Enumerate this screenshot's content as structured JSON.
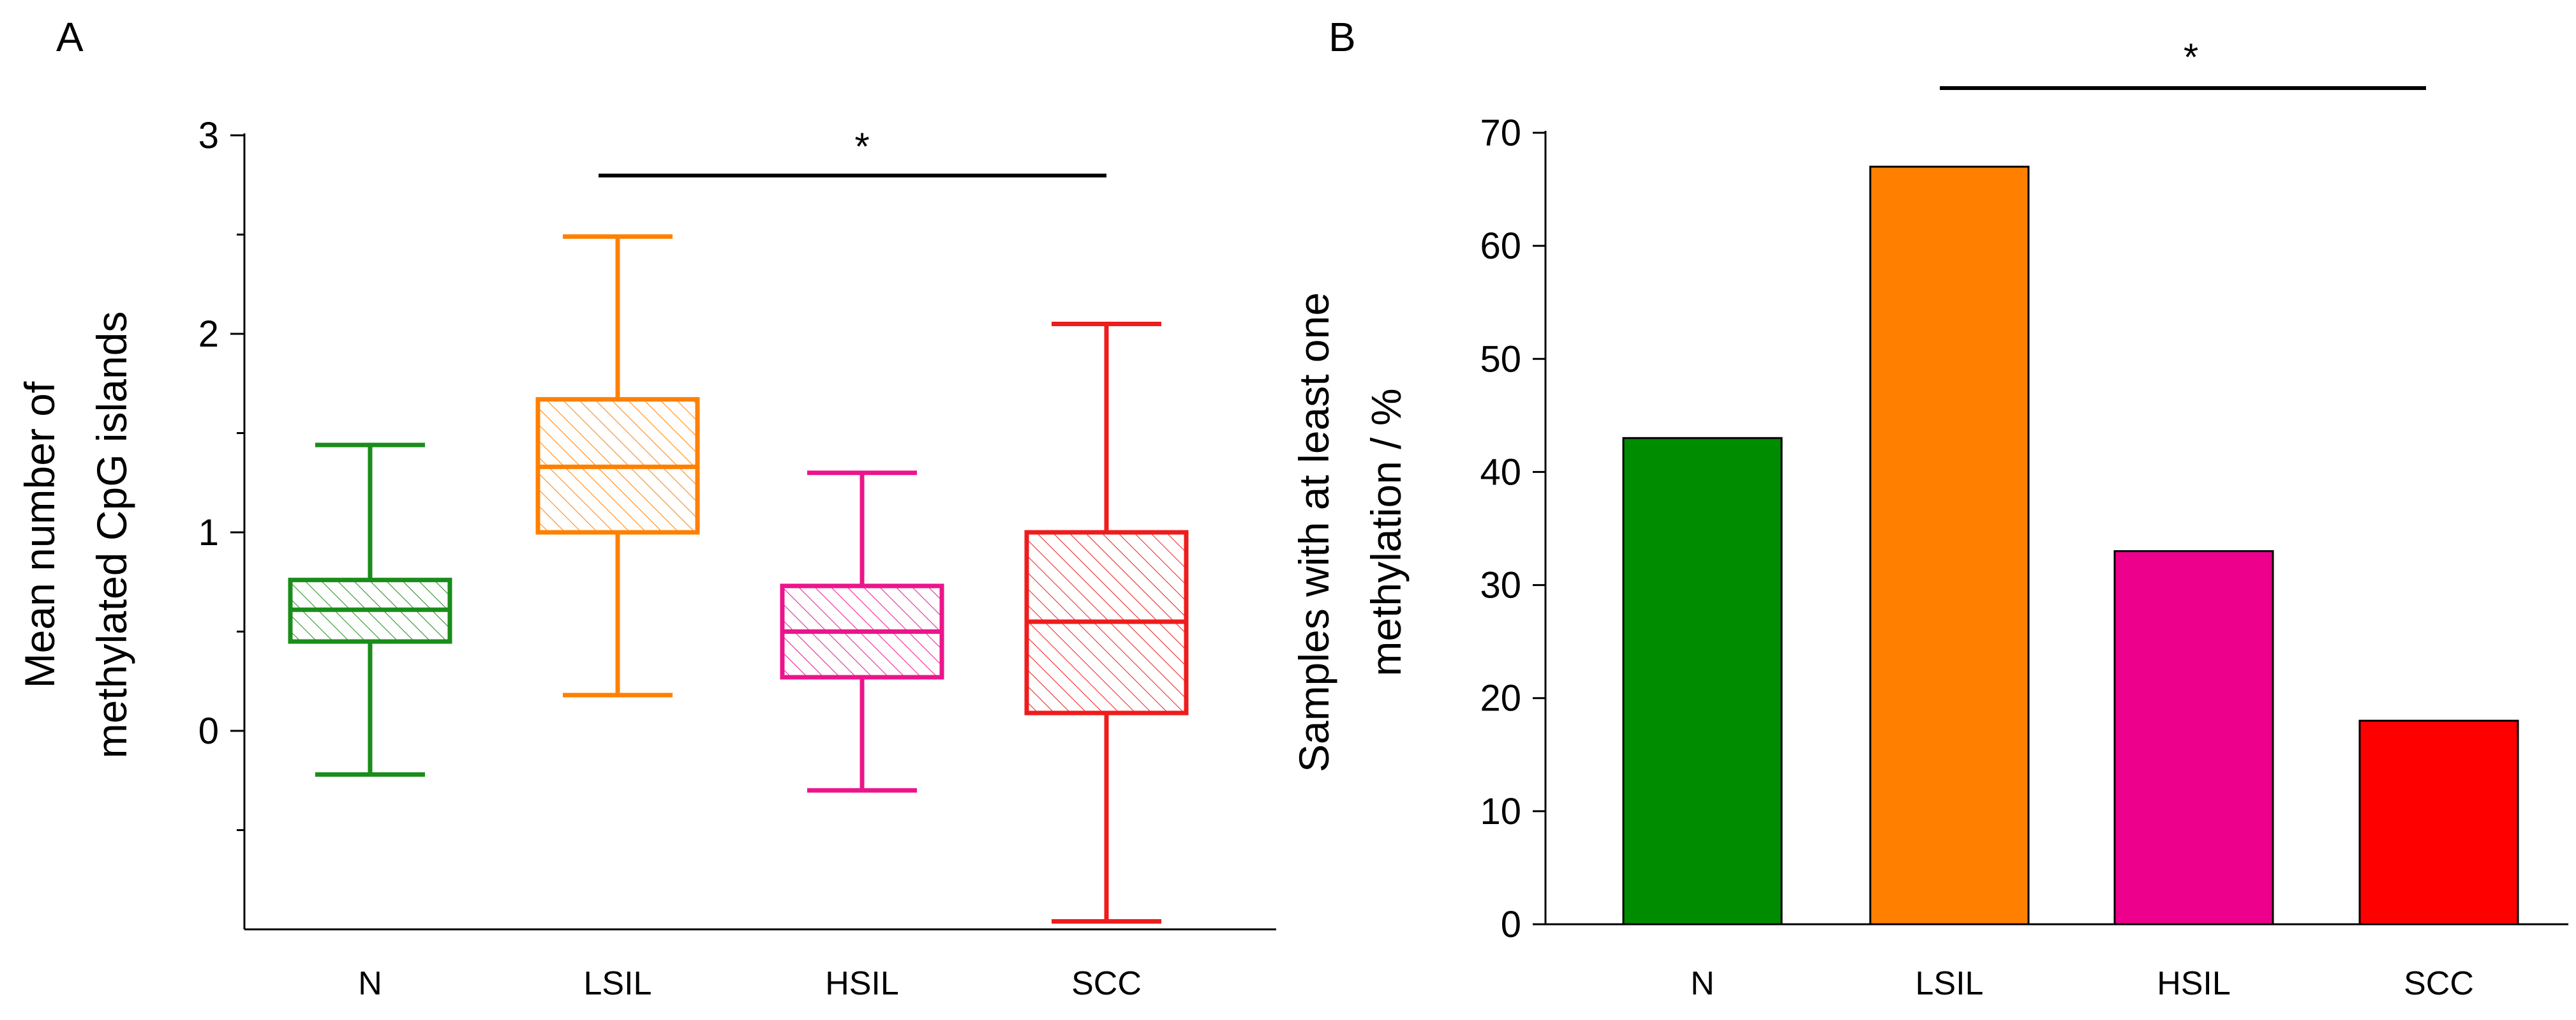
{
  "chart_data": [
    {
      "panel_label": "A",
      "type": "box",
      "ylabel_lines": [
        "Mean number of",
        "methylated CpG islands"
      ],
      "ylim": [
        -1,
        3
      ],
      "yticks": [
        0,
        1,
        2,
        3
      ],
      "yticks_minor": [
        -0.5,
        0.5,
        1.5,
        2.5
      ],
      "categories": [
        "N",
        "LSIL",
        "HSIL",
        "SCC"
      ],
      "colors": [
        "#1a8c1a",
        "#ff8000",
        "#ec148c",
        "#ee1c1c"
      ],
      "boxes": [
        {
          "whisker_low": -0.22,
          "q1": 0.45,
          "median": 0.61,
          "q3": 0.76,
          "whisker_high": 1.44
        },
        {
          "whisker_low": 0.18,
          "q1": 1.0,
          "median": 1.33,
          "q3": 1.67,
          "whisker_high": 2.49
        },
        {
          "whisker_low": -0.3,
          "q1": 0.27,
          "median": 0.5,
          "q3": 0.73,
          "whisker_high": 1.3
        },
        {
          "whisker_low": -0.96,
          "q1": 0.09,
          "median": 0.55,
          "q3": 1.0,
          "whisker_high": 2.05
        }
      ],
      "significance": {
        "from": "LSIL",
        "to": "SCC",
        "label": "*"
      }
    },
    {
      "panel_label": "B",
      "type": "bar",
      "ylabel_lines": [
        "Samples with at least one",
        "methylation / %"
      ],
      "ylim": [
        0,
        70
      ],
      "yticks": [
        0,
        10,
        20,
        30,
        40,
        50,
        60,
        70
      ],
      "categories": [
        "N",
        "LSIL",
        "HSIL",
        "SCC"
      ],
      "values": [
        43,
        67,
        33,
        18
      ],
      "colors": [
        "#008c00",
        "#ff7f00",
        "#ec008c",
        "#ff0000"
      ],
      "significance": {
        "from": "LSIL",
        "to": "SCC",
        "label": "*"
      }
    }
  ]
}
